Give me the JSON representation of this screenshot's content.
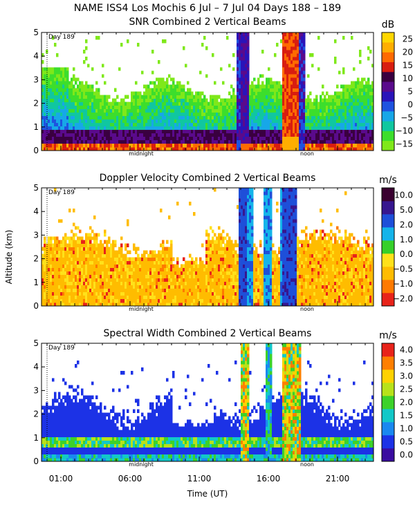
{
  "figure": {
    "title": "NAME ISS4 Los Mochis    6 Jul –  7 Jul 04 Days 188 – 189",
    "ylabel": "Altitude (km)",
    "xlabel": "Time (UT)",
    "xticks": [
      "01:00",
      "06:00",
      "11:00",
      "16:00",
      "21:00"
    ],
    "xtick_hours": [
      1,
      6,
      11,
      16,
      21
    ],
    "xrange_hours": [
      -0.4,
      23.6
    ],
    "day_marker": "Day 189",
    "midnight_label": "midnight",
    "noon_label": "noon"
  },
  "chart_data": [
    {
      "type": "heatmap",
      "title": "SNR Combined 2 Vertical Beams",
      "colorbar_unit": "dB",
      "colorbar_ticks": [
        "25",
        "20",
        "15",
        "10",
        "5",
        "0",
        "−5",
        "−10",
        "−15"
      ],
      "colorbar_range": [
        -17,
        29
      ],
      "colors": [
        "#7fe81a",
        "#3cde2c",
        "#10c7a0",
        "#17a7e8",
        "#1e53e0",
        "#2a14b9",
        "#5a0a8c",
        "#3a0040",
        "#d81d10",
        "#ff6a00",
        "#ffae00",
        "#ffd700"
      ],
      "ylim": [
        0,
        5
      ],
      "yticks": [
        "0",
        "1",
        "2",
        "3",
        "4",
        "5"
      ],
      "x_axis": "time (UT hours)",
      "y_axis": "altitude (km)"
    },
    {
      "type": "heatmap",
      "title": "Doppler Velocity Combined 2 Vertical Beams",
      "colorbar_unit": "m/s",
      "colorbar_ticks": [
        "10.0",
        "5.0",
        "2.0",
        "1.0",
        "0.0",
        "−0.5",
        "−1.0",
        "−2.0"
      ],
      "colorbar_range": [
        -2.5,
        10.5
      ],
      "colors": [
        "#e8231a",
        "#ff7a00",
        "#ffbc00",
        "#ffe11a",
        "#36d02a",
        "#14b4ea",
        "#1e4fd9",
        "#37168f",
        "#3a0030"
      ],
      "ylim": [
        0,
        5
      ],
      "yticks": [
        "0",
        "1",
        "2",
        "3",
        "4",
        "5"
      ],
      "x_axis": "time (UT hours)",
      "y_axis": "altitude (km)"
    },
    {
      "type": "heatmap",
      "title": "Spectral Width Combined 2 Vertical Beams",
      "colorbar_unit": "m/s",
      "colorbar_ticks": [
        "4.0",
        "3.5",
        "3.0",
        "2.5",
        "2.0",
        "1.5",
        "1.0",
        "0.5",
        "0.0"
      ],
      "colorbar_range": [
        0,
        4.3
      ],
      "colors": [
        "#3a0ca0",
        "#1c32e6",
        "#1a88f0",
        "#12c8c8",
        "#3cd22a",
        "#b8e21a",
        "#ffd200",
        "#ff7f00",
        "#e8231a"
      ],
      "ylim": [
        0,
        5
      ],
      "yticks": [
        "0",
        "1",
        "2",
        "3",
        "4",
        "5"
      ],
      "x_axis": "time (UT hours)",
      "y_axis": "altitude (km)"
    }
  ]
}
